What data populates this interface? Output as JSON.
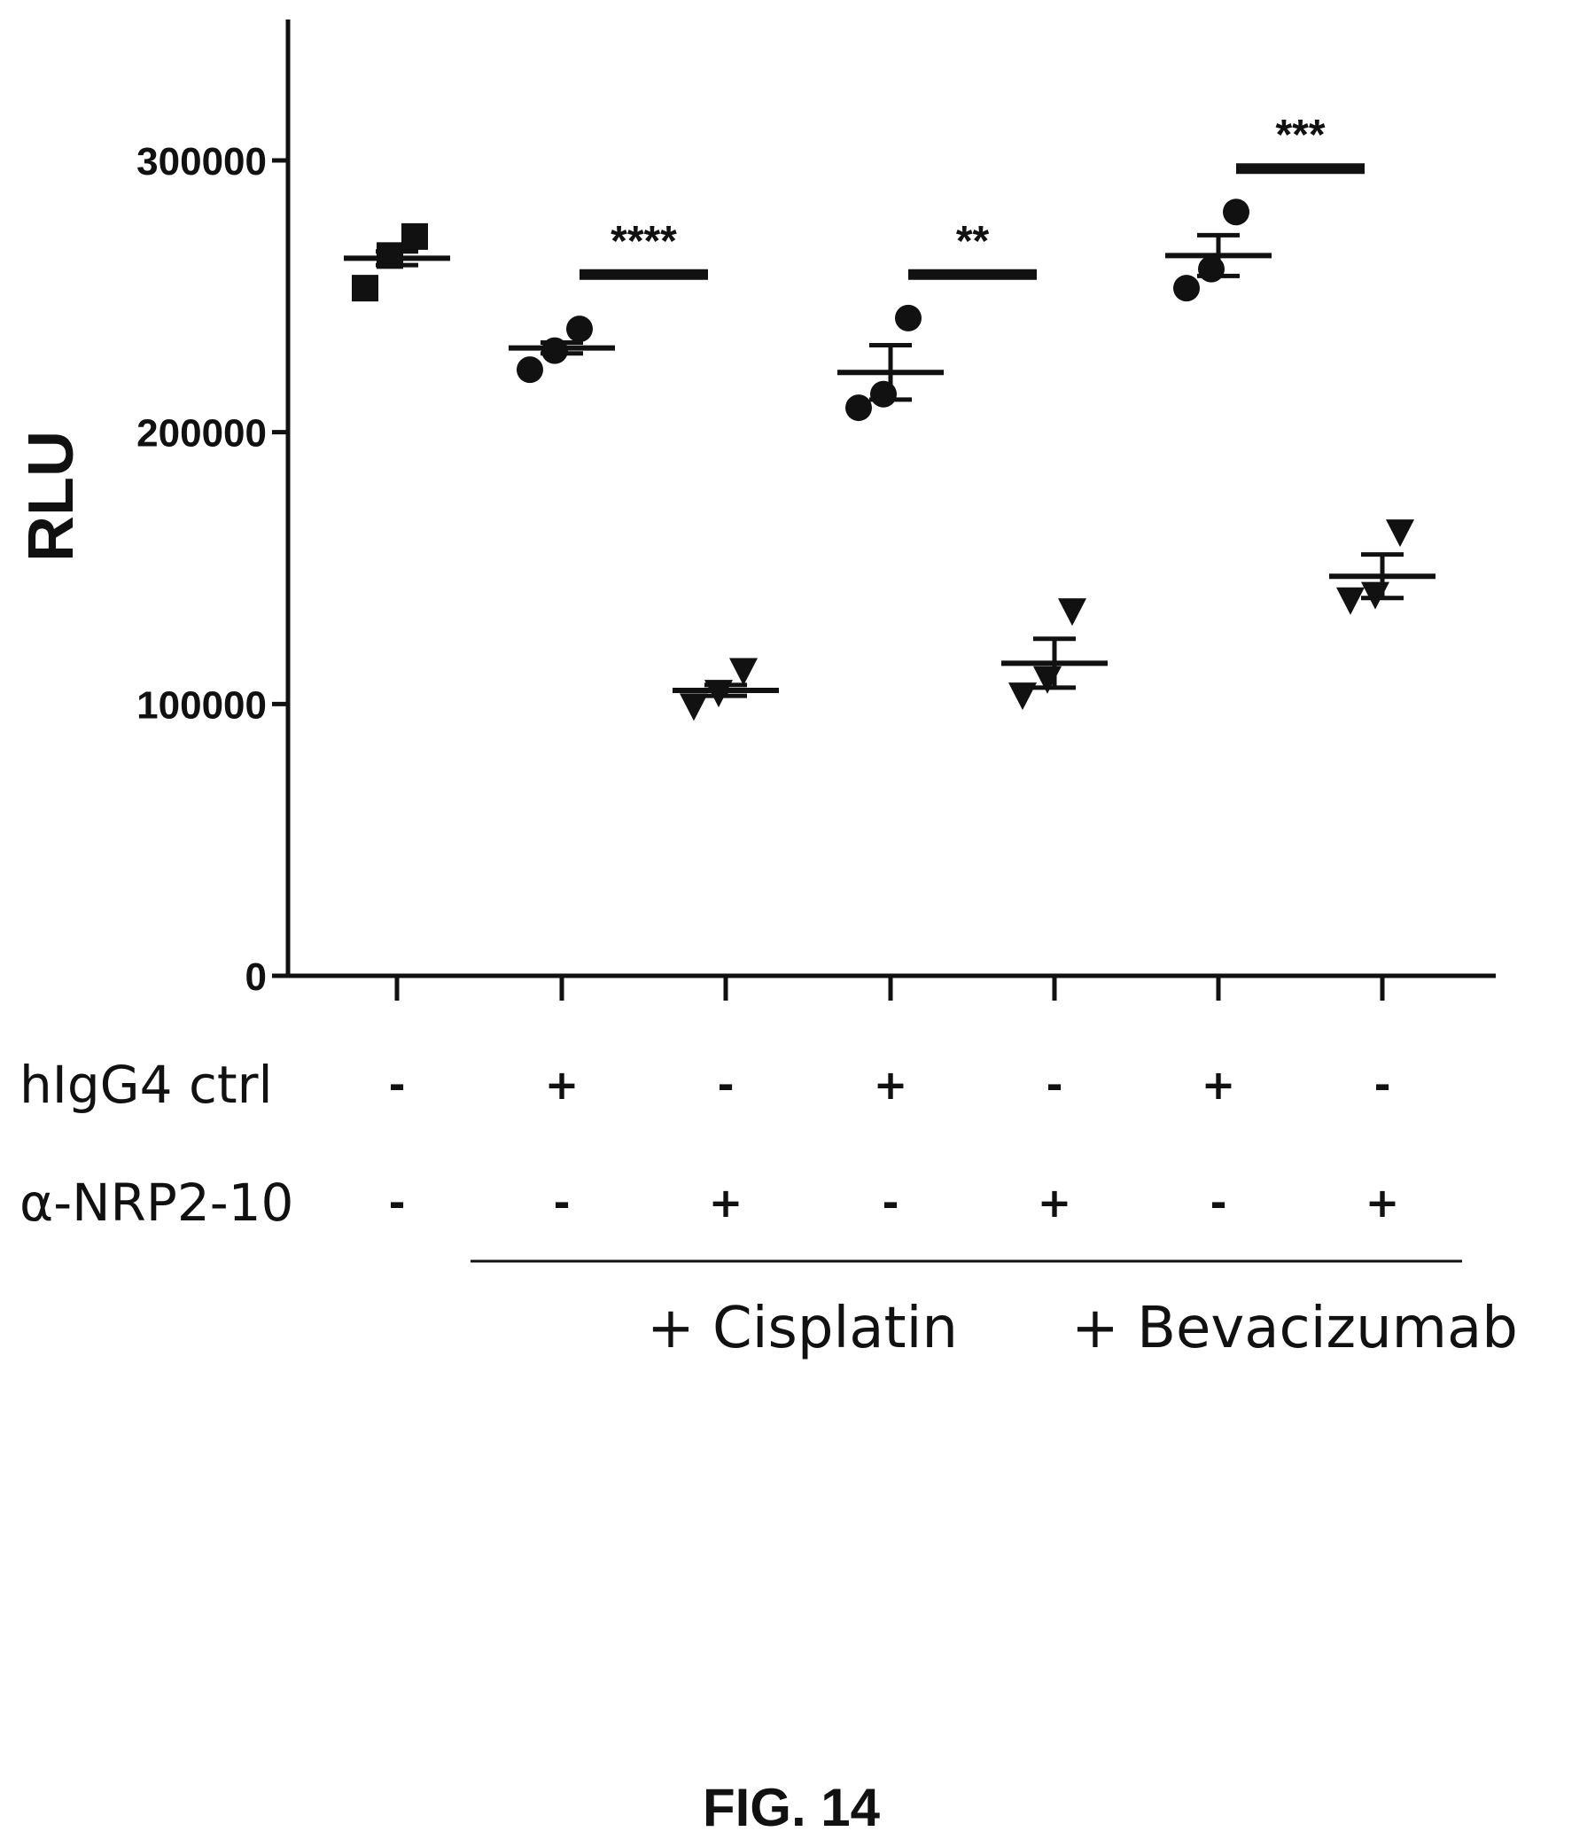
{
  "chart_data": {
    "type": "scatter",
    "ylabel": "RLU",
    "ylim": [
      0,
      350000
    ],
    "yticks": [
      0,
      100000,
      200000,
      300000
    ],
    "ytick_labels": [
      "0",
      "100000",
      "200000",
      "300000"
    ],
    "grid": false,
    "groups": [
      {
        "marker": "square",
        "points": [
          253000,
          265000,
          272000
        ],
        "mean": 264000,
        "sem": 2500
      },
      {
        "marker": "circle",
        "points": [
          223000,
          230000,
          238000
        ],
        "mean": 231000,
        "sem": 2000
      },
      {
        "marker": "triangle",
        "points": [
          99000,
          104000,
          112000
        ],
        "mean": 105000,
        "sem": 2000
      },
      {
        "marker": "circle",
        "points": [
          209000,
          214000,
          242000
        ],
        "mean": 222000,
        "sem": 10000
      },
      {
        "marker": "triangle",
        "points": [
          103000,
          109000,
          134000
        ],
        "mean": 115000,
        "sem": 9000
      },
      {
        "marker": "circle",
        "points": [
          253000,
          260000,
          281000
        ],
        "mean": 265000,
        "sem": 7500
      },
      {
        "marker": "triangle",
        "points": [
          138000,
          140000,
          163000
        ],
        "mean": 147000,
        "sem": 8000
      }
    ],
    "condition_rows": [
      {
        "label": "hIgG4 ctrl",
        "signs": [
          "-",
          "+",
          "-",
          "+",
          "-",
          "+",
          "-"
        ]
      },
      {
        "label": "α-NRP2-10",
        "signs": [
          "-",
          "-",
          "+",
          "-",
          "+",
          "-",
          "+"
        ]
      }
    ],
    "treatment_groups": [
      {
        "label": "+ Cisplatin",
        "from_group": 1,
        "to_group": 4
      },
      {
        "label": "+ Bevacizumab",
        "from_group": 5,
        "to_group": 6
      }
    ],
    "significance": [
      {
        "label": "****",
        "from_group": 1,
        "to_group": 2,
        "y": 258000
      },
      {
        "label": "**",
        "from_group": 3,
        "to_group": 4,
        "y": 258000
      },
      {
        "label": "***",
        "from_group": 5,
        "to_group": 6,
        "y": 297000
      }
    ]
  },
  "caption": "FIG. 14",
  "colors": {
    "ink": "#111111",
    "background": "#ffffff"
  }
}
